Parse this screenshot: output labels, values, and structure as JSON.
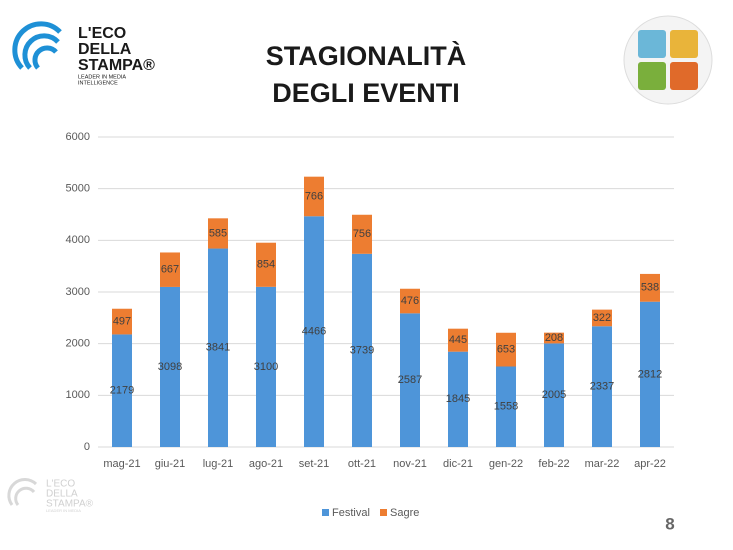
{
  "logo": {
    "lines": [
      "L'ECO",
      "DELLA",
      "STAMPA®"
    ],
    "tagline": [
      "LEADER IN MEDIA",
      "INTELLIGENCE"
    ]
  },
  "title": [
    "STAGIONALITÀ",
    "DEGLI EVENTI"
  ],
  "page_number": "8",
  "chart_data": {
    "type": "bar",
    "stacked": true,
    "categories": [
      "mag-21",
      "giu-21",
      "lug-21",
      "ago-21",
      "set-21",
      "ott-21",
      "nov-21",
      "dic-21",
      "gen-22",
      "feb-22",
      "mar-22",
      "apr-22"
    ],
    "series": [
      {
        "name": "Festival",
        "color": "#4e95d9",
        "values": [
          2179,
          3098,
          3841,
          3100,
          4466,
          3739,
          2587,
          1845,
          1558,
          2005,
          2337,
          2812
        ]
      },
      {
        "name": "Sagre",
        "color": "#ed7d31",
        "values": [
          497,
          667,
          585,
          854,
          766,
          756,
          476,
          445,
          653,
          208,
          322,
          538
        ]
      }
    ],
    "ylim": [
      0,
      6000
    ],
    "yticks": [
      0,
      1000,
      2000,
      3000,
      4000,
      5000,
      6000
    ],
    "grid": true,
    "legend": "bottom",
    "value_labels_shown": true
  }
}
